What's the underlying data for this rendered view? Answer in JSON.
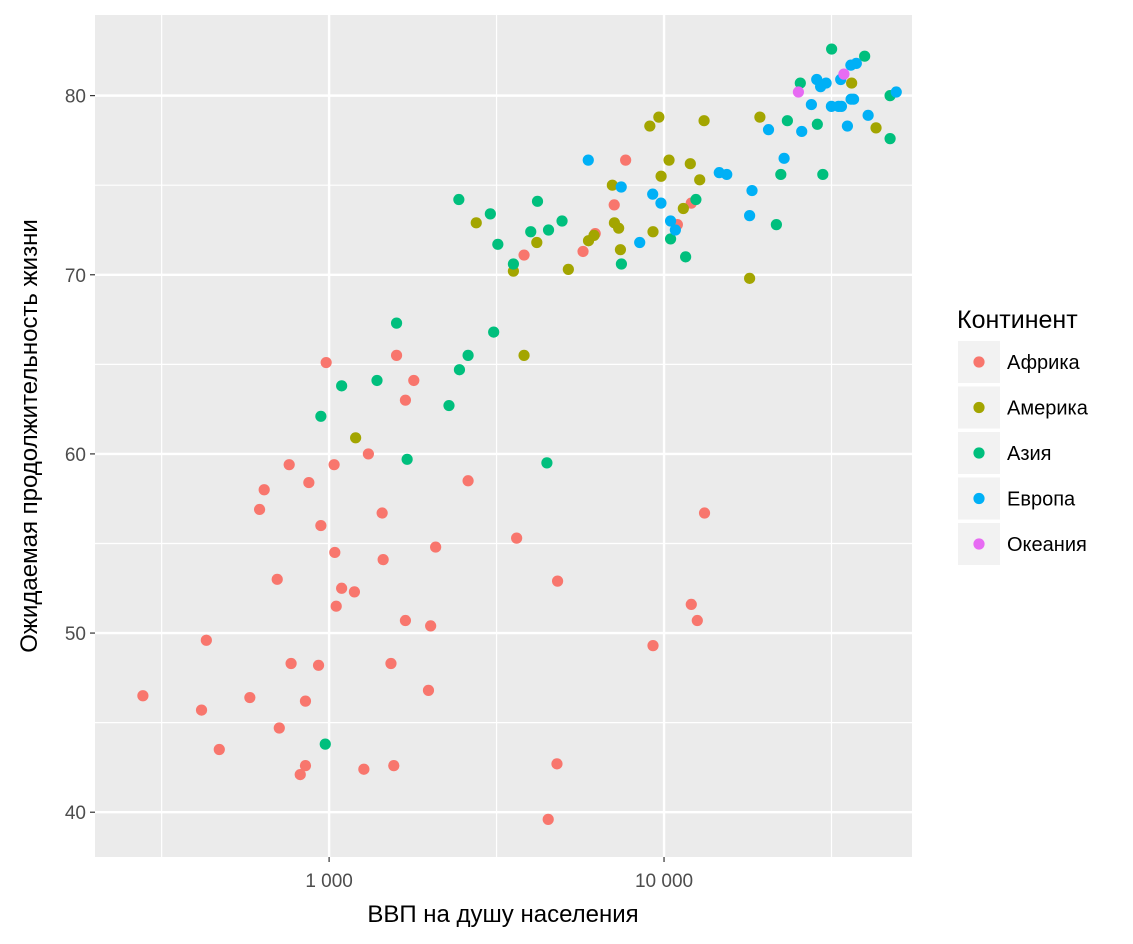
{
  "chart_data": {
    "type": "scatter",
    "xlabel": "ВВП на душу населения",
    "ylabel": "Ожидаемая продолжительность жизни",
    "x_scale": "log10",
    "xlim": [
      200,
      55000
    ],
    "ylim": [
      37.5,
      84.5
    ],
    "x_ticks": [
      1000,
      10000
    ],
    "x_tick_labels": [
      "1 000",
      "10 000"
    ],
    "y_ticks": [
      40,
      50,
      60,
      70,
      80
    ],
    "y_tick_labels": [
      "40",
      "50",
      "60",
      "70",
      "80"
    ],
    "grid": true,
    "legend": {
      "title": "Континент",
      "position": "right",
      "entries": [
        {
          "name": "Африка",
          "color": "#F8766D"
        },
        {
          "name": "Америка",
          "color": "#A3A500"
        },
        {
          "name": "Азия",
          "color": "#00BF7D"
        },
        {
          "name": "Европа",
          "color": "#00B0F6"
        },
        {
          "name": "Океания",
          "color": "#E76BF3"
        }
      ]
    },
    "series": [
      {
        "name": "Африка",
        "points": [
          [
            278,
            46.5
          ],
          [
            416,
            45.7
          ],
          [
            430,
            49.6
          ],
          [
            470,
            43.5
          ],
          [
            580,
            46.4
          ],
          [
            620,
            56.9
          ],
          [
            640,
            58.0
          ],
          [
            700,
            53.0
          ],
          [
            710,
            44.7
          ],
          [
            760,
            59.4
          ],
          [
            770,
            48.3
          ],
          [
            820,
            42.1
          ],
          [
            850,
            46.2
          ],
          [
            850,
            42.6
          ],
          [
            870,
            58.4
          ],
          [
            930,
            48.2
          ],
          [
            945,
            56.0
          ],
          [
            980,
            65.1
          ],
          [
            1035,
            59.4
          ],
          [
            1040,
            54.5
          ],
          [
            1050,
            51.5
          ],
          [
            1090,
            52.5
          ],
          [
            1190,
            52.3
          ],
          [
            1270,
            42.4
          ],
          [
            1310,
            60.0
          ],
          [
            1440,
            56.7
          ],
          [
            1450,
            54.1
          ],
          [
            1530,
            48.3
          ],
          [
            1560,
            42.6
          ],
          [
            1590,
            65.5
          ],
          [
            1690,
            63.0
          ],
          [
            1690,
            50.7
          ],
          [
            1790,
            64.1
          ],
          [
            1980,
            46.8
          ],
          [
            2010,
            50.4
          ],
          [
            2080,
            54.8
          ],
          [
            2600,
            58.5
          ],
          [
            3630,
            55.3
          ],
          [
            3820,
            71.1
          ],
          [
            4510,
            39.6
          ],
          [
            4790,
            42.7
          ],
          [
            4810,
            52.9
          ],
          [
            5730,
            71.3
          ],
          [
            6230,
            72.3
          ],
          [
            7100,
            73.9
          ],
          [
            7680,
            76.4
          ],
          [
            9270,
            49.3
          ],
          [
            10960,
            72.8
          ],
          [
            12060,
            74.0
          ],
          [
            12060,
            51.6
          ],
          [
            12570,
            50.7
          ],
          [
            13210,
            56.7
          ]
        ]
      },
      {
        "name": "Америка",
        "points": [
          [
            1200,
            60.9
          ],
          [
            2750,
            72.9
          ],
          [
            3550,
            70.2
          ],
          [
            3820,
            65.5
          ],
          [
            4170,
            71.8
          ],
          [
            5180,
            70.3
          ],
          [
            5950,
            71.9
          ],
          [
            6180,
            72.2
          ],
          [
            7010,
            75.0
          ],
          [
            7110,
            72.9
          ],
          [
            7320,
            72.6
          ],
          [
            7410,
            71.4
          ],
          [
            9070,
            78.3
          ],
          [
            9270,
            72.4
          ],
          [
            9650,
            78.8
          ],
          [
            9800,
            75.5
          ],
          [
            10350,
            76.4
          ],
          [
            11420,
            73.7
          ],
          [
            11980,
            76.2
          ],
          [
            12780,
            75.3
          ],
          [
            13170,
            78.6
          ],
          [
            18010,
            69.8
          ],
          [
            19330,
            78.8
          ],
          [
            36320,
            80.7
          ],
          [
            42950,
            78.2
          ]
        ]
      },
      {
        "name": "Азия",
        "points": [
          [
            945,
            62.1
          ],
          [
            974,
            43.8
          ],
          [
            1090,
            63.8
          ],
          [
            1390,
            64.1
          ],
          [
            1590,
            67.3
          ],
          [
            1710,
            59.7
          ],
          [
            2280,
            62.7
          ],
          [
            2440,
            74.2
          ],
          [
            2450,
            64.7
          ],
          [
            2600,
            65.5
          ],
          [
            3030,
            73.4
          ],
          [
            3100,
            66.8
          ],
          [
            3190,
            71.7
          ],
          [
            3550,
            70.6
          ],
          [
            4000,
            72.4
          ],
          [
            4190,
            74.1
          ],
          [
            4470,
            59.5
          ],
          [
            4520,
            72.5
          ],
          [
            4960,
            73.0
          ],
          [
            7460,
            70.6
          ],
          [
            10460,
            72.0
          ],
          [
            11600,
            71.0
          ],
          [
            12450,
            74.2
          ],
          [
            21650,
            72.8
          ],
          [
            22320,
            75.6
          ],
          [
            23350,
            78.6
          ],
          [
            25520,
            80.7
          ],
          [
            28690,
            78.4
          ],
          [
            29790,
            75.6
          ],
          [
            31650,
            82.6
          ],
          [
            39720,
            82.2
          ],
          [
            47310,
            80.0
          ],
          [
            47310,
            77.6
          ]
        ]
      },
      {
        "name": "Европа",
        "points": [
          [
            5940,
            76.4
          ],
          [
            7450,
            74.9
          ],
          [
            8460,
            71.8
          ],
          [
            9250,
            74.5
          ],
          [
            9790,
            74.0
          ],
          [
            10460,
            73.0
          ],
          [
            10810,
            72.5
          ],
          [
            14620,
            75.7
          ],
          [
            15390,
            75.6
          ],
          [
            18010,
            73.3
          ],
          [
            18310,
            74.7
          ],
          [
            20510,
            78.1
          ],
          [
            22830,
            76.5
          ],
          [
            25770,
            78.0
          ],
          [
            27540,
            79.5
          ],
          [
            28570,
            80.9
          ],
          [
            29340,
            80.5
          ],
          [
            30470,
            80.7
          ],
          [
            31600,
            79.4
          ],
          [
            33200,
            79.4
          ],
          [
            33690,
            80.9
          ],
          [
            33860,
            79.4
          ],
          [
            35280,
            78.3
          ],
          [
            36180,
            79.8
          ],
          [
            36130,
            81.7
          ],
          [
            36800,
            79.8
          ],
          [
            37510,
            81.8
          ],
          [
            40680,
            78.9
          ],
          [
            49360,
            80.2
          ]
        ]
      },
      {
        "name": "Океания",
        "points": [
          [
            25190,
            80.2
          ],
          [
            34440,
            81.2
          ]
        ]
      }
    ]
  }
}
